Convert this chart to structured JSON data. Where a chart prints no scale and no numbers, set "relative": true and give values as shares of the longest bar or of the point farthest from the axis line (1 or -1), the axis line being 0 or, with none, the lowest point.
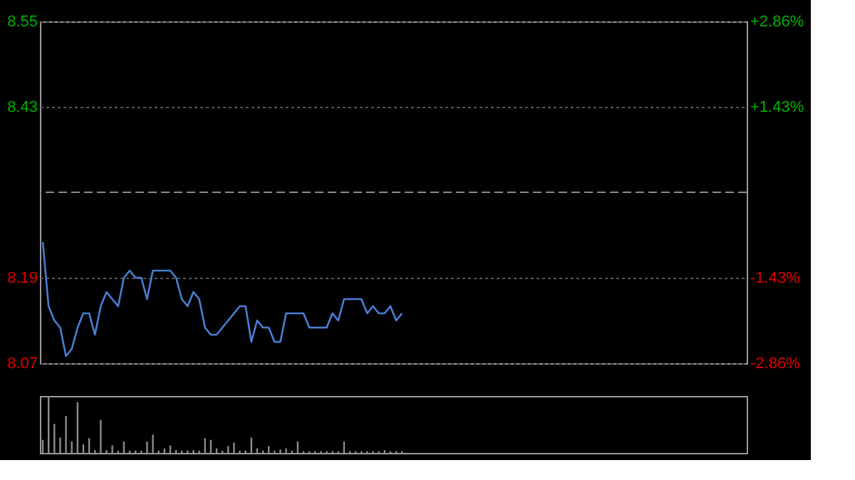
{
  "chart_data": [
    {
      "type": "line",
      "categories": [
        null,
        null,
        null,
        null,
        null,
        null,
        null,
        null,
        null,
        null,
        null,
        null,
        null,
        null,
        null,
        null,
        null,
        null,
        null,
        null,
        null,
        null,
        null,
        null,
        null,
        null,
        null,
        null,
        null,
        null,
        null,
        null,
        null,
        null,
        null,
        null,
        null,
        null,
        null,
        null,
        null,
        null,
        null,
        null,
        null,
        null,
        null,
        null,
        null,
        null,
        null,
        null,
        null,
        null,
        null,
        null,
        null,
        null,
        null,
        null,
        null,
        null,
        null,
        null,
        null,
        null,
        null,
        null,
        null,
        null,
        null,
        null,
        null,
        null,
        null,
        null,
        null,
        null,
        null,
        null,
        null,
        null,
        null,
        null,
        null,
        null,
        null,
        null,
        null,
        null,
        null,
        null,
        null,
        null,
        null,
        null,
        null,
        null,
        null,
        null,
        null,
        null,
        null,
        null,
        null,
        null,
        null,
        null,
        null,
        null,
        null,
        null,
        null,
        null,
        null,
        null,
        null,
        null,
        null,
        null,
        null,
        null
      ],
      "series": [
        {
          "color": "#4a7fd4",
          "values": [
            8.24,
            8.15,
            8.13,
            8.12,
            8.08,
            8.09,
            8.12,
            8.14,
            8.14,
            8.11,
            8.15,
            8.17,
            8.16,
            8.15,
            8.19,
            8.2,
            8.19,
            8.19,
            8.16,
            8.2,
            8.2,
            8.2,
            8.2,
            8.19,
            8.16,
            8.15,
            8.17,
            8.16,
            8.12,
            8.11,
            8.11,
            8.12,
            8.13,
            8.14,
            8.15,
            8.15,
            8.1,
            8.13,
            8.12,
            8.12,
            8.1,
            8.1,
            8.14,
            8.14,
            8.14,
            8.14,
            8.12,
            8.12,
            8.12,
            8.12,
            8.14,
            8.13,
            8.16,
            8.16,
            8.16,
            8.16,
            8.14,
            8.15,
            8.14,
            8.14,
            8.15,
            8.13,
            8.14,
            null,
            null,
            null,
            null,
            null,
            null,
            null,
            null,
            null,
            null,
            null,
            null,
            null,
            null,
            null,
            null,
            null,
            null,
            null,
            null,
            null,
            null,
            null,
            null,
            null,
            null,
            null,
            null,
            null,
            null,
            null,
            null,
            null,
            null,
            null,
            null,
            null,
            null,
            null,
            null,
            null,
            null,
            null,
            null,
            null,
            null,
            null,
            null,
            null,
            null,
            null,
            null,
            null,
            null,
            null,
            null,
            null,
            null,
            null
          ]
        }
      ],
      "ylim": [
        8.07,
        8.55
      ],
      "yticks": [
        8.55,
        8.43,
        8.19,
        8.07
      ],
      "y2lim": [
        -2.86,
        2.86
      ],
      "y2ticks": [
        {
          "value": 2.86,
          "label": "+2.86%"
        },
        {
          "value": 1.43,
          "label": "+1.43%"
        },
        {
          "value": -1.43,
          "label": "-1.43%"
        },
        {
          "value": -2.86,
          "label": "-2.86%"
        }
      ],
      "ref_lines": [
        {
          "axis": "y",
          "value": 8.31,
          "line_style": "dashed",
          "color": "#8c8c8c"
        }
      ],
      "grid": true,
      "marker": "none",
      "line_style": "solid"
    },
    {
      "type": "bar",
      "relative": true,
      "categories": [
        null,
        null,
        null,
        null,
        null,
        null,
        null,
        null,
        null,
        null,
        null,
        null,
        null,
        null,
        null,
        null,
        null,
        null,
        null,
        null,
        null,
        null,
        null,
        null,
        null,
        null,
        null,
        null,
        null,
        null,
        null,
        null,
        null,
        null,
        null,
        null,
        null,
        null,
        null,
        null,
        null,
        null,
        null,
        null,
        null,
        null,
        null,
        null,
        null,
        null,
        null,
        null,
        null,
        null,
        null,
        null,
        null,
        null,
        null,
        null,
        null,
        null,
        null,
        null,
        null,
        null,
        null,
        null,
        null,
        null,
        null,
        null,
        null,
        null,
        null,
        null,
        null,
        null,
        null,
        null,
        null,
        null,
        null,
        null,
        null,
        null,
        null,
        null,
        null,
        null,
        null,
        null,
        null,
        null,
        null,
        null,
        null,
        null,
        null,
        null,
        null,
        null,
        null,
        null,
        null,
        null,
        null,
        null,
        null,
        null,
        null,
        null,
        null,
        null,
        null,
        null,
        null,
        null,
        null,
        null,
        null,
        null
      ],
      "series": [
        {
          "color": "#8c8c8c",
          "values": [
            0.23,
            1,
            0.51,
            0.27,
            0.65,
            0.2,
            0.89,
            0.15,
            0.26,
            0.05,
            0.58,
            0.05,
            0.13,
            0.04,
            0.2,
            0.04,
            0.04,
            0.04,
            0.2,
            0.32,
            0.04,
            0.08,
            0.13,
            0.05,
            0.04,
            0.04,
            0.05,
            0.04,
            0.26,
            0.23,
            0.08,
            0.04,
            0.12,
            0.18,
            0.04,
            0.04,
            0.27,
            0.08,
            0.04,
            0.12,
            0.04,
            0.06,
            0.08,
            0.04,
            0.2,
            0.03,
            0.03,
            0.03,
            0.03,
            0.03,
            0.03,
            0.03,
            0.2,
            0.03,
            0.03,
            0.03,
            0.03,
            0.03,
            0.03,
            0.05,
            0.03,
            0.03,
            0.03,
            null,
            null,
            null,
            null,
            null,
            null,
            null,
            null,
            null,
            null,
            null,
            null,
            null,
            null,
            null,
            null,
            null,
            null,
            null,
            null,
            null,
            null,
            null,
            null,
            null,
            null,
            null,
            null,
            null,
            null,
            null,
            null,
            null,
            null,
            null,
            null,
            null,
            null,
            null,
            null,
            null,
            null,
            null,
            null,
            null,
            null,
            null,
            null,
            null,
            null,
            null,
            null,
            null,
            null,
            null,
            null,
            null,
            null,
            null
          ]
        }
      ],
      "grid": false
    }
  ]
}
